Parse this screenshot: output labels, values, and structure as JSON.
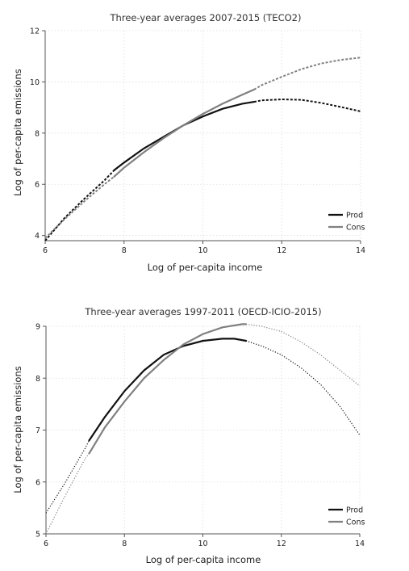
{
  "chart_data": [
    {
      "type": "line",
      "title": "Three-year averages 2007-2015 (TECO2)",
      "xlabel": "Log of per-capita income",
      "ylabel": "Log of per-capita emissions",
      "xlim": [
        6,
        14
      ],
      "ylim": [
        3.8,
        12
      ],
      "xticks": [
        6,
        8,
        10,
        12,
        14
      ],
      "yticks": [
        4,
        6,
        8,
        10,
        12
      ],
      "grid": true,
      "legend_position": "bottom-right",
      "series": [
        {
          "name": "Prod",
          "color": "#111111",
          "line_style_outside_sample": "dashed",
          "sample_range": [
            7.75,
            11.3
          ],
          "x": [
            6,
            6.5,
            7,
            7.5,
            7.75,
            8,
            8.5,
            9,
            9.5,
            10,
            10.5,
            11,
            11.3,
            11.5,
            12,
            12.5,
            13,
            13.5,
            14
          ],
          "y": [
            3.8,
            4.7,
            5.45,
            6.15,
            6.55,
            6.85,
            7.4,
            7.85,
            8.3,
            8.65,
            8.95,
            9.15,
            9.22,
            9.28,
            9.32,
            9.3,
            9.18,
            9.02,
            8.85
          ]
        },
        {
          "name": "Cons",
          "color": "#808080",
          "line_style_outside_sample": "dashed",
          "sample_range": [
            7.75,
            11.3
          ],
          "x": [
            6,
            6.5,
            7,
            7.5,
            7.75,
            8,
            8.5,
            9,
            9.5,
            10,
            10.5,
            11,
            11.3,
            11.5,
            12,
            12.5,
            13,
            13.5,
            14
          ],
          "y": [
            3.9,
            4.65,
            5.35,
            6.0,
            6.3,
            6.65,
            7.25,
            7.8,
            8.3,
            8.75,
            9.15,
            9.5,
            9.7,
            9.88,
            10.2,
            10.5,
            10.72,
            10.86,
            10.95
          ]
        }
      ]
    },
    {
      "type": "line",
      "title": "Three-year averages 1997-2011 (OECD-ICIO-2015)",
      "xlabel": "Log of per-capita income",
      "ylabel": "Log of per-capita emissions",
      "xlim": [
        6,
        14
      ],
      "ylim": [
        5,
        9
      ],
      "xticks": [
        6,
        8,
        10,
        12,
        14
      ],
      "yticks": [
        5,
        6,
        7,
        8,
        9
      ],
      "grid": true,
      "legend_position": "bottom-right",
      "series": [
        {
          "name": "Prod",
          "color": "#111111",
          "line_style_outside_sample": "dotted",
          "sample_range": [
            7.1,
            11.1
          ],
          "x": [
            6,
            6.5,
            7,
            7.1,
            7.5,
            8,
            8.5,
            9,
            9.5,
            10,
            10.5,
            10.8,
            11.1,
            11.5,
            12,
            12.5,
            13,
            13.5,
            14
          ],
          "y": [
            5.4,
            6.0,
            6.65,
            6.8,
            7.25,
            7.75,
            8.15,
            8.45,
            8.62,
            8.72,
            8.76,
            8.76,
            8.72,
            8.62,
            8.45,
            8.2,
            7.88,
            7.45,
            6.9
          ]
        },
        {
          "name": "Cons",
          "color": "#808080",
          "line_style_outside_sample": "dotted",
          "sample_range": [
            7.1,
            11.1
          ],
          "x": [
            6,
            6.5,
            7,
            7.1,
            7.5,
            8,
            8.5,
            9,
            9.5,
            10,
            10.5,
            11,
            11.1,
            11.5,
            12,
            12.5,
            13,
            13.5,
            14
          ],
          "y": [
            5.0,
            5.75,
            6.45,
            6.55,
            7.05,
            7.55,
            8.0,
            8.35,
            8.65,
            8.85,
            8.98,
            9.04,
            9.04,
            9.0,
            8.9,
            8.7,
            8.45,
            8.15,
            7.85
          ]
        }
      ]
    }
  ]
}
